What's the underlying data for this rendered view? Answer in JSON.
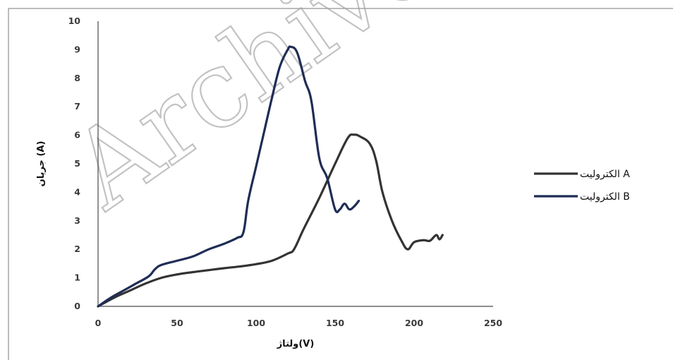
{
  "watermark": "Archive",
  "colors": {
    "background": "#ffffff",
    "axis": "#4a4a4a",
    "frame": "#7a7a7a"
  },
  "chart_data": {
    "type": "line",
    "title": "",
    "xlabel": "ولتاژ(V)",
    "ylabel": "جریان (A)",
    "xlim": [
      0,
      250
    ],
    "ylim": [
      0,
      10
    ],
    "xticks": [
      0,
      50,
      100,
      150,
      200,
      250
    ],
    "yticks": [
      0,
      1,
      2,
      3,
      4,
      5,
      6,
      7,
      8,
      9,
      10
    ],
    "grid": false,
    "legend_position": "right",
    "series": [
      {
        "name": "الکترولیت A",
        "color": "#333333",
        "points": [
          [
            0,
            0
          ],
          [
            10,
            0.3
          ],
          [
            20,
            0.55
          ],
          [
            30,
            0.8
          ],
          [
            40,
            1.0
          ],
          [
            50,
            1.12
          ],
          [
            60,
            1.2
          ],
          [
            70,
            1.27
          ],
          [
            80,
            1.34
          ],
          [
            90,
            1.4
          ],
          [
            100,
            1.48
          ],
          [
            110,
            1.6
          ],
          [
            120,
            1.85
          ],
          [
            124,
            2.0
          ],
          [
            130,
            2.7
          ],
          [
            140,
            3.8
          ],
          [
            150,
            5.0
          ],
          [
            158,
            5.9
          ],
          [
            162,
            6.02
          ],
          [
            166,
            5.95
          ],
          [
            172,
            5.7
          ],
          [
            176,
            5.1
          ],
          [
            180,
            4.0
          ],
          [
            186,
            3.0
          ],
          [
            192,
            2.3
          ],
          [
            196,
            2.0
          ],
          [
            200,
            2.25
          ],
          [
            206,
            2.32
          ],
          [
            210,
            2.3
          ],
          [
            214,
            2.5
          ],
          [
            216,
            2.35
          ],
          [
            218,
            2.5
          ]
        ]
      },
      {
        "name": "الکترولیت B",
        "color": "#1f2d55",
        "points": [
          [
            0,
            0
          ],
          [
            8,
            0.3
          ],
          [
            16,
            0.55
          ],
          [
            24,
            0.8
          ],
          [
            32,
            1.05
          ],
          [
            36,
            1.3
          ],
          [
            40,
            1.45
          ],
          [
            50,
            1.6
          ],
          [
            60,
            1.75
          ],
          [
            70,
            2.0
          ],
          [
            80,
            2.2
          ],
          [
            88,
            2.4
          ],
          [
            92,
            2.6
          ],
          [
            95,
            3.7
          ],
          [
            100,
            4.9
          ],
          [
            105,
            6.1
          ],
          [
            110,
            7.3
          ],
          [
            115,
            8.4
          ],
          [
            120,
            9.0
          ],
          [
            122,
            9.1
          ],
          [
            126,
            8.9
          ],
          [
            131,
            7.9
          ],
          [
            135,
            7.2
          ],
          [
            140,
            5.2
          ],
          [
            145,
            4.5
          ],
          [
            150,
            3.4
          ],
          [
            153,
            3.4
          ],
          [
            156,
            3.6
          ],
          [
            159,
            3.4
          ],
          [
            162,
            3.5
          ],
          [
            165,
            3.7
          ]
        ]
      }
    ]
  }
}
